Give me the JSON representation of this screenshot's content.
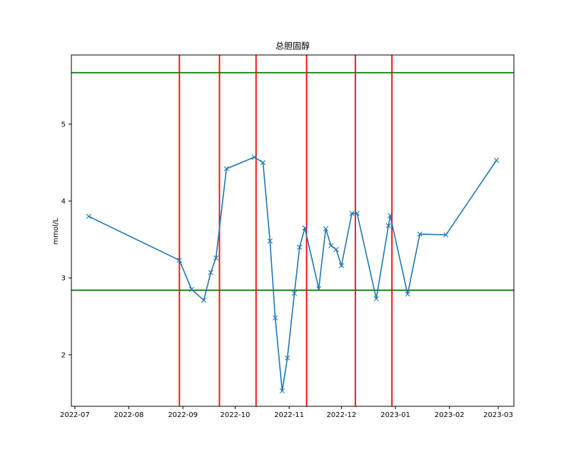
{
  "chart_data": {
    "type": "line",
    "title": "总胆固醇",
    "xlabel": "",
    "ylabel": "mmol/L",
    "x_axis": {
      "type": "date",
      "range": [
        "2022-06-29",
        "2023-03-10"
      ],
      "ticks": [
        "2022-07-01",
        "2022-08-01",
        "2022-09-01",
        "2022-10-01",
        "2022-11-01",
        "2022-12-01",
        "2023-01-01",
        "2023-02-01",
        "2023-03-01"
      ],
      "tick_labels": [
        "2022-07",
        "2022-08",
        "2022-09",
        "2022-10",
        "2022-11",
        "2022-12",
        "2023-01",
        "2023-02",
        "2023-03"
      ]
    },
    "y_axis": {
      "range": [
        1.33,
        5.9
      ],
      "ticks": [
        2,
        3,
        4,
        5
      ],
      "tick_labels": [
        "2",
        "3",
        "4",
        "5"
      ]
    },
    "grid": false,
    "legend": "none",
    "series": [
      {
        "color": "#1f77b4",
        "marker": "x",
        "points": [
          {
            "x": "2022-07-09",
            "y": 3.8
          },
          {
            "x": "2022-08-30",
            "y": 3.23
          },
          {
            "x": "2022-09-06",
            "y": 2.85
          },
          {
            "x": "2022-09-13",
            "y": 2.71
          },
          {
            "x": "2022-09-17",
            "y": 3.07
          },
          {
            "x": "2022-09-20",
            "y": 3.26
          },
          {
            "x": "2022-09-26",
            "y": 4.42
          },
          {
            "x": "2022-10-12",
            "y": 4.57
          },
          {
            "x": "2022-10-17",
            "y": 4.5
          },
          {
            "x": "2022-10-21",
            "y": 3.48
          },
          {
            "x": "2022-10-24",
            "y": 2.48
          },
          {
            "x": "2022-10-28",
            "y": 1.53
          },
          {
            "x": "2022-10-31",
            "y": 1.96
          },
          {
            "x": "2022-11-04",
            "y": 2.8
          },
          {
            "x": "2022-11-07",
            "y": 3.4
          },
          {
            "x": "2022-11-10",
            "y": 3.65
          },
          {
            "x": "2022-11-18",
            "y": 2.86
          },
          {
            "x": "2022-11-22",
            "y": 3.64
          },
          {
            "x": "2022-11-25",
            "y": 3.42
          },
          {
            "x": "2022-11-28",
            "y": 3.37
          },
          {
            "x": "2022-12-01",
            "y": 3.16
          },
          {
            "x": "2022-12-07",
            "y": 3.84
          },
          {
            "x": "2022-12-10",
            "y": 3.84
          },
          {
            "x": "2022-12-21",
            "y": 2.73
          },
          {
            "x": "2022-12-28",
            "y": 3.68
          },
          {
            "x": "2022-12-29",
            "y": 3.81
          },
          {
            "x": "2023-01-08",
            "y": 2.79
          },
          {
            "x": "2023-01-15",
            "y": 3.57
          },
          {
            "x": "2023-01-30",
            "y": 3.56
          },
          {
            "x": "2023-02-28",
            "y": 4.53
          }
        ]
      }
    ],
    "reference_lines": {
      "horizontal": {
        "color": "#008000",
        "values": [
          5.67,
          2.84
        ]
      },
      "vertical": {
        "color": "#ff0000",
        "dates": [
          "2022-08-30",
          "2022-09-22",
          "2022-10-13",
          "2022-11-11",
          "2022-12-09",
          "2022-12-30"
        ]
      }
    }
  }
}
